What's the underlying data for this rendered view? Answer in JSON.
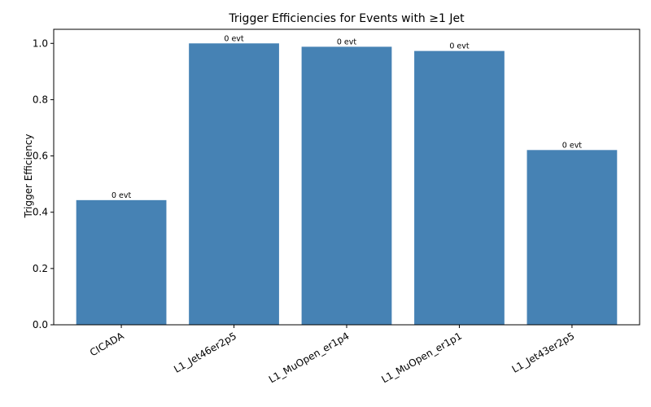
{
  "chart_data": {
    "type": "bar",
    "title": "Trigger Efficiencies for Events with ≥1 Jet",
    "xlabel": "",
    "ylabel": "Trigger Efficiency",
    "categories": [
      "CICADA",
      "L1_Jet46er2p5",
      "L1_MuOpen_er1p4",
      "L1_MuOpen_er1p1",
      "L1_Jet43er2p5"
    ],
    "values": [
      0.443,
      1.0,
      0.988,
      0.973,
      0.621
    ],
    "bar_labels": [
      "0 evt",
      "0 evt",
      "0 evt",
      "0 evt",
      "0 evt"
    ],
    "ylim": [
      0,
      1.05
    ],
    "yticks": [
      0.0,
      0.2,
      0.4,
      0.6,
      0.8,
      1.0
    ],
    "ytick_labels": [
      "0.0",
      "0.2",
      "0.4",
      "0.6",
      "0.8",
      "1.0"
    ],
    "bar_color": "#4682b4",
    "grid": false,
    "legend": "none"
  }
}
